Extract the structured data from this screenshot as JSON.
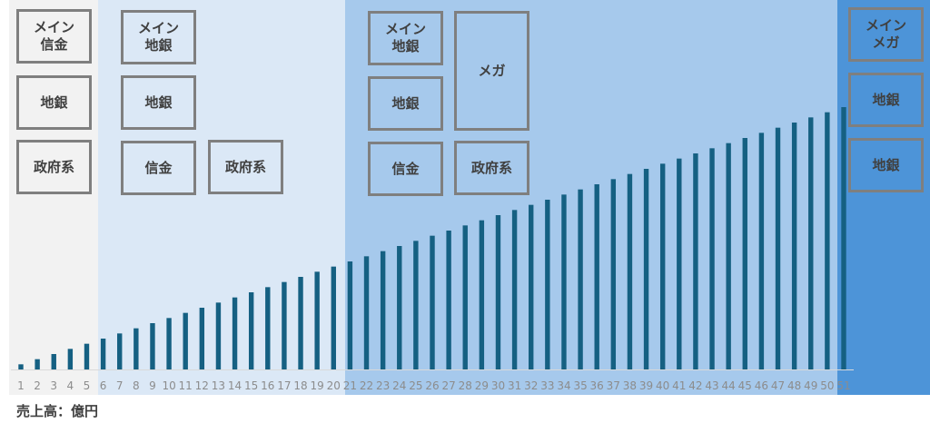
{
  "chart_data": {
    "type": "bar",
    "categories": [
      "1",
      "2",
      "3",
      "4",
      "5",
      "6",
      "7",
      "8",
      "9",
      "10",
      "11",
      "12",
      "13",
      "14",
      "15",
      "16",
      "17",
      "18",
      "19",
      "20",
      "21",
      "22",
      "23",
      "24",
      "25",
      "26",
      "27",
      "28",
      "29",
      "30",
      "31",
      "32",
      "33",
      "34",
      "35",
      "36",
      "37",
      "38",
      "39",
      "40",
      "41",
      "42",
      "43",
      "44",
      "45",
      "46",
      "47",
      "48",
      "49",
      "50",
      "51"
    ],
    "values": [
      1,
      2,
      3,
      4,
      5,
      6,
      7,
      8,
      9,
      10,
      11,
      12,
      13,
      14,
      15,
      16,
      17,
      18,
      19,
      20,
      21,
      22,
      23,
      24,
      25,
      26,
      27,
      28,
      29,
      30,
      31,
      32,
      33,
      34,
      35,
      36,
      37,
      38,
      39,
      40,
      41,
      42,
      43,
      44,
      45,
      46,
      47,
      48,
      49,
      50,
      51
    ],
    "title": "",
    "xlabel": "",
    "ylabel": "売上高：億円",
    "grid": false,
    "bar_color": "#156082",
    "bands": [
      {
        "from": "1",
        "to": "5",
        "color": "#f2f2f2",
        "boxes": [
          "メイン\n信金",
          "地銀",
          "政府系"
        ]
      },
      {
        "from": "6",
        "to": "20",
        "color": "#dbe8f6",
        "boxes": [
          "メイン\n地銀",
          "地銀",
          "信金",
          "政府系"
        ]
      },
      {
        "from": "21",
        "to": "50",
        "color": "#a6c9ec",
        "boxes": [
          "メイン\n地銀",
          "地銀",
          "信金",
          "メガ",
          "政府系"
        ]
      },
      {
        "from": "51",
        "to": "51",
        "color": "#4d94d8",
        "boxes": [
          "メイン\nメガ",
          "地銀",
          "地銀"
        ]
      }
    ]
  }
}
